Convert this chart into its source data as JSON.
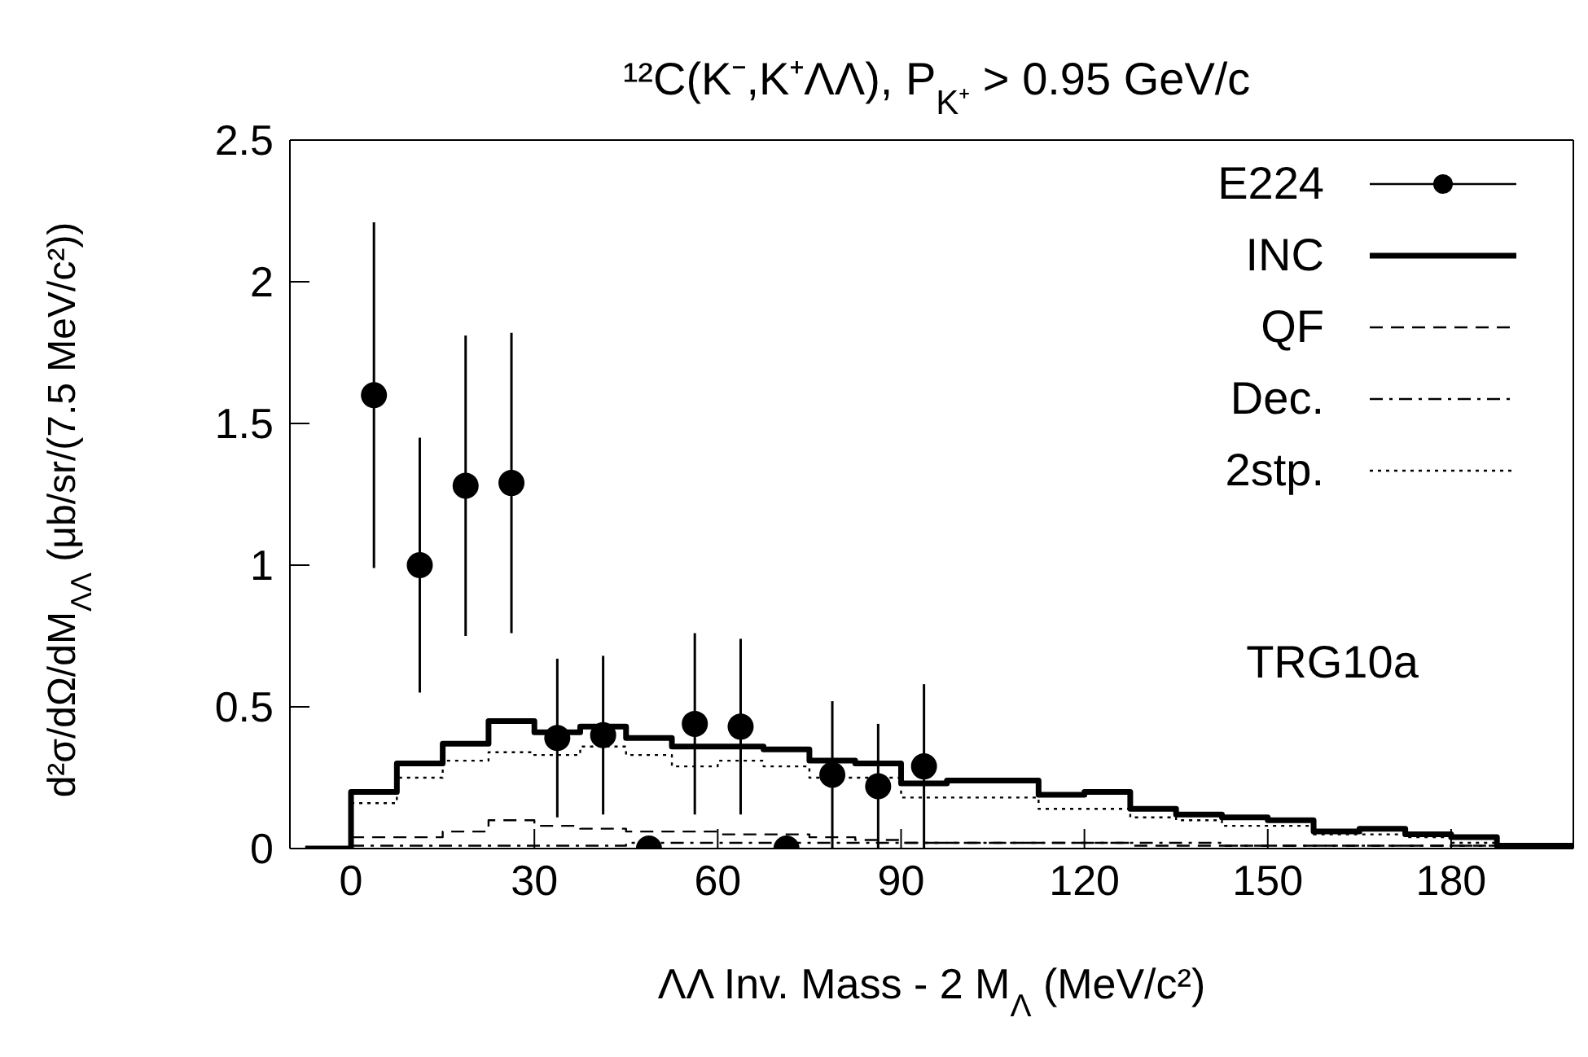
{
  "chart_data": {
    "type": "step",
    "title": "¹²C(K⁻,K⁺ΛΛ), P$_{K⁺}$ > 0.95 GeV/c",
    "xlabel": "ΛΛ Inv. Mass - 2 M$_{Λ}$ (MeV/c²)",
    "ylabel": "d²σ/dΩ/dM$_{ΛΛ}$ (μb/sr/(7.5 MeV/c²))",
    "annotations": [
      "TRG10a"
    ],
    "xlim": [
      -10,
      200
    ],
    "xticks": [
      0,
      30,
      60,
      90,
      120,
      150,
      180
    ],
    "ylim": [
      0,
      2.5
    ],
    "yticks": [
      0,
      0.5,
      1,
      1.5,
      2,
      2.5
    ],
    "grid": false,
    "legend": "top right",
    "series": [
      {
        "name": "E224",
        "type": "scatter",
        "color": "#000000",
        "marker": "circle",
        "x": [
          3.75,
          11.25,
          18.75,
          26.25,
          33.75,
          41.25,
          48.75,
          56.25,
          63.75,
          71.25,
          78.75,
          86.25,
          93.75
        ],
        "values": [
          1.6,
          1.0,
          1.28,
          1.29,
          0.39,
          0.4,
          0,
          0.44,
          0.43,
          0,
          0.26,
          0.22,
          0.29
        ],
        "errors": [
          0.61,
          0.45,
          0.53,
          0.53,
          0.28,
          0.28,
          null,
          0.32,
          0.31,
          null,
          0.26,
          0.22,
          0.29
        ]
      },
      {
        "name": "INC",
        "color": "#000000",
        "line_style": "solid",
        "x": [
          -7.5,
          0,
          7.5,
          15,
          22.5,
          30,
          37.5,
          45,
          52.5,
          60,
          67.5,
          75,
          82.5,
          90,
          97.5,
          105,
          112.5,
          120,
          127.5,
          135,
          142.5,
          150,
          157.5,
          165,
          172.5,
          180,
          187.5,
          195,
          200
        ],
        "values": [
          0,
          0.2,
          0.3,
          0.37,
          0.45,
          0.41,
          0.43,
          0.39,
          0.36,
          0.36,
          0.35,
          0.31,
          0.3,
          0.23,
          0.24,
          0.24,
          0.19,
          0.2,
          0.14,
          0.12,
          0.11,
          0.1,
          0.06,
          0.07,
          0.05,
          0.04,
          0.01,
          0.01,
          0.01
        ]
      },
      {
        "name": "QF",
        "color": "#000000",
        "line_style": "dashed",
        "x": [
          0,
          7.5,
          15,
          22.5,
          30,
          37.5,
          45,
          52.5,
          60,
          67.5,
          75,
          82.5,
          90,
          97.5,
          105,
          112.5,
          120,
          127.5,
          135,
          142.5,
          150,
          157.5,
          165,
          172.5,
          180,
          187.5,
          195,
          200
        ],
        "values": [
          0.04,
          0.04,
          0.06,
          0.1,
          0.08,
          0.07,
          0.06,
          0.06,
          0.05,
          0.05,
          0.04,
          0.03,
          0.02,
          0.02,
          0.02,
          0.02,
          0.02,
          0.01,
          0.01,
          0.01,
          0.01,
          0.01,
          0.01,
          0.01,
          0.01,
          0.01,
          0,
          0
        ]
      },
      {
        "name": "Dec.",
        "color": "#000000",
        "line_style": "dashdot",
        "x": [
          0,
          7.5,
          15,
          22.5,
          30,
          37.5,
          45,
          52.5,
          60,
          67.5,
          75,
          82.5,
          90,
          97.5,
          105,
          112.5,
          120,
          127.5,
          135,
          142.5,
          150,
          157.5,
          165,
          172.5,
          180,
          187.5,
          195,
          200
        ],
        "values": [
          0.01,
          0.01,
          0.01,
          0.01,
          0.01,
          0.01,
          0.02,
          0.02,
          0.02,
          0.02,
          0.02,
          0.02,
          0.02,
          0.02,
          0.02,
          0.02,
          0.02,
          0.02,
          0.02,
          0.01,
          0.01,
          0.01,
          0.01,
          0.01,
          0.01,
          0.01,
          0.01,
          0.01
        ]
      },
      {
        "name": "2stp.",
        "color": "#000000",
        "line_style": "dotted",
        "x": [
          0,
          7.5,
          15,
          22.5,
          30,
          37.5,
          45,
          52.5,
          60,
          67.5,
          75,
          82.5,
          90,
          97.5,
          105,
          112.5,
          120,
          127.5,
          135,
          142.5,
          150,
          157.5,
          165,
          172.5,
          180,
          187.5,
          195,
          200
        ],
        "values": [
          0.16,
          0.25,
          0.31,
          0.34,
          0.33,
          0.36,
          0.33,
          0.29,
          0.31,
          0.29,
          0.25,
          0.25,
          0.18,
          0.18,
          0.18,
          0.14,
          0.14,
          0.11,
          0.1,
          0.08,
          0.08,
          0.05,
          0.05,
          0.04,
          0.02,
          0.01,
          0.01,
          0.01
        ]
      }
    ]
  }
}
